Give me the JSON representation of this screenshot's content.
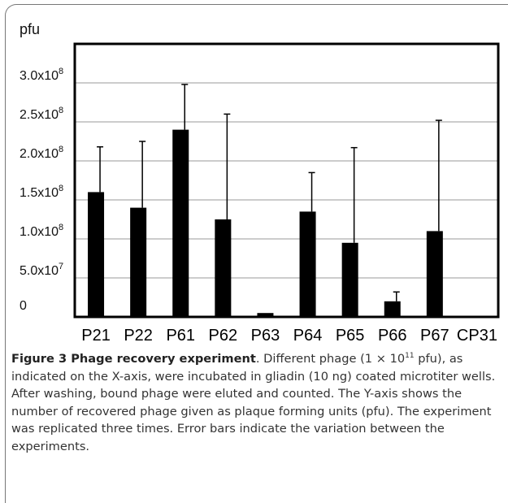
{
  "chart_data": {
    "type": "bar",
    "ylabel": "pfu",
    "xlabel": "",
    "title": "",
    "categories": [
      "P21",
      "P22",
      "P61",
      "P62",
      "P63",
      "P64",
      "P65",
      "P66",
      "P67",
      "CP31"
    ],
    "values": [
      160000000,
      140000000,
      240000000,
      125000000,
      5000000,
      135000000,
      95000000,
      20000000,
      110000000,
      0
    ],
    "error_upper": [
      218000000,
      225000000,
      298000000,
      260000000,
      5000000,
      185000000,
      217000000,
      32000000,
      252000000,
      0
    ],
    "ylim": [
      0,
      300000000
    ],
    "ytick_values": [
      0,
      50000000,
      100000000,
      150000000,
      200000000,
      250000000,
      300000000
    ],
    "ytick_labels": [
      {
        "base": "0",
        "exp": ""
      },
      {
        "base": "5.0x10",
        "exp": "7"
      },
      {
        "base": "1.0x10",
        "exp": "8"
      },
      {
        "base": "1.5x10",
        "exp": "8"
      },
      {
        "base": "2.0x10",
        "exp": "8"
      },
      {
        "base": "2.5x10",
        "exp": "8"
      },
      {
        "base": "3.0x10",
        "exp": "8"
      }
    ],
    "grid": true,
    "bar_color": "#000000",
    "grid_color": "#9a9a9a"
  },
  "caption": {
    "title": "Figure 3 Phage recovery experiment",
    "text_pre": ". Different phage (1 × 10",
    "exp": "11",
    "text_post": " pfu), as indicated on the X-axis, were incubated in gliadin (10 ng) coated microtiter wells. After washing, bound phage were eluted and counted. The Y-axis shows the number of recovered phage given as plaque forming units (pfu). The experiment was replicated three times. Error bars indicate the variation between the experiments."
  }
}
